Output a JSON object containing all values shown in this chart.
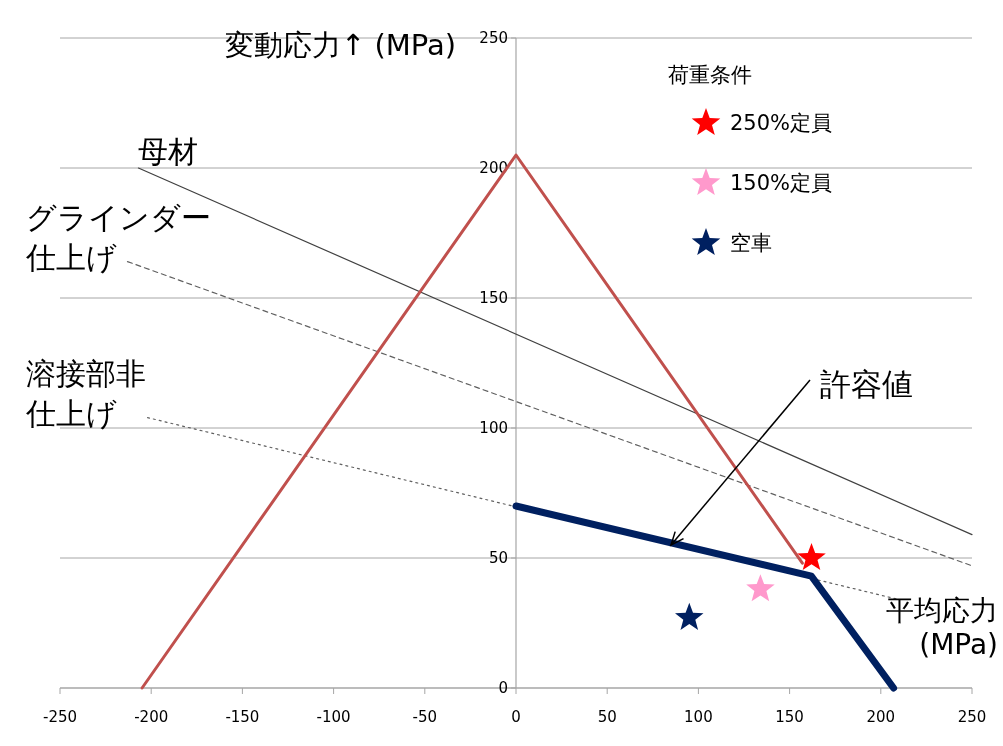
{
  "chart_data": {
    "type": "line",
    "xlabel": "平均応力 (MPa)",
    "ylabel": "変動応力↑ (MPa)",
    "legend_title": "荷重条件",
    "legend": "top right",
    "grid": "y",
    "xlim": [
      -250,
      250
    ],
    "ylim": [
      0,
      250
    ],
    "xticks": [
      -250,
      -200,
      -150,
      -100,
      -50,
      0,
      50,
      100,
      150,
      200,
      250
    ],
    "yticks": [
      0,
      50,
      100,
      150,
      200,
      250
    ],
    "series": [
      {
        "name": "母材",
        "color": "#404040",
        "x": [
          -207,
          250
        ],
        "values": [
          200,
          59
        ],
        "line_style": "solid"
      },
      {
        "name": "グラインダー仕上げ",
        "color": "#606060",
        "x": [
          -213,
          250
        ],
        "values": [
          164,
          47
        ],
        "line_style": "dashed"
      },
      {
        "name": "溶接部非仕上げ",
        "color": "#606060",
        "x": [
          -202,
          210
        ],
        "values": [
          104,
          34
        ],
        "line_style": "dotted"
      },
      {
        "color": "#c0504d",
        "x": [
          -205,
          0,
          157
        ],
        "values": [
          0,
          205,
          48
        ],
        "line_style": "solid"
      },
      {
        "color": "#002060",
        "x": [
          0,
          162,
          207
        ],
        "values": [
          70,
          43,
          0
        ],
        "line_style": "solid"
      },
      {
        "type": "scatter",
        "name": "250%定員",
        "color": "#ff0000",
        "x": [
          162
        ],
        "values": [
          50
        ],
        "marker": "star"
      },
      {
        "type": "scatter",
        "name": "150%定員",
        "color": "#ff99cc",
        "x": [
          134
        ],
        "values": [
          38
        ],
        "marker": "star"
      },
      {
        "type": "scatter",
        "name": "空車",
        "color": "#002060",
        "x": [
          95
        ],
        "values": [
          27
        ],
        "marker": "star"
      }
    ],
    "annotations": [
      {
        "text": "許容値",
        "x": 85,
        "y": 55
      }
    ]
  }
}
